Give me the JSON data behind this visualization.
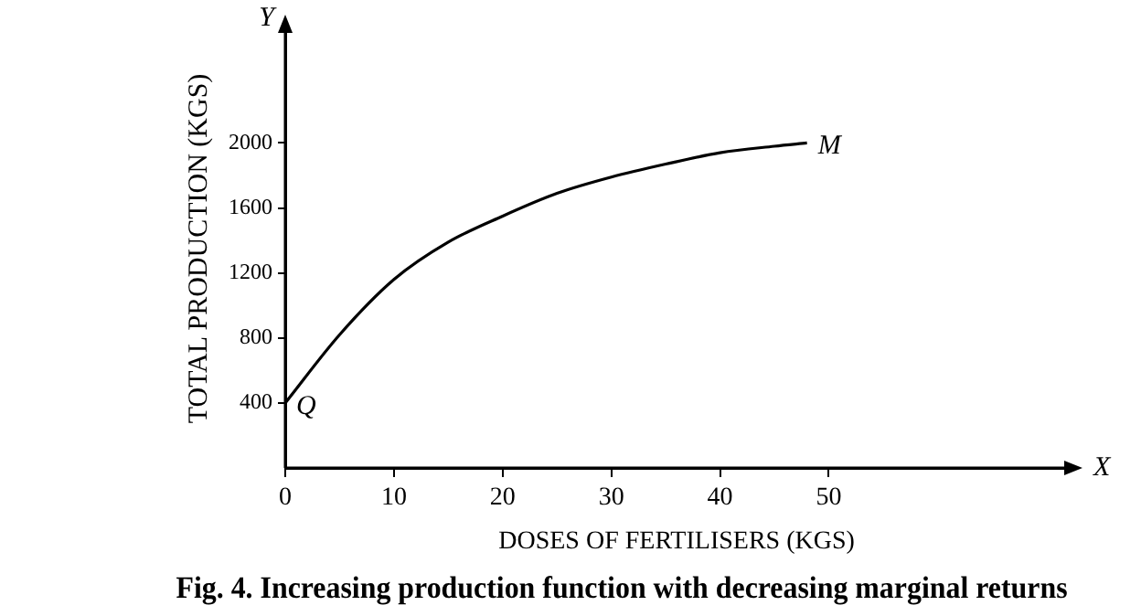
{
  "chart_data": {
    "type": "line",
    "title": "Fig. 4. Increasing production function with decreasing marginal returns",
    "xlabel": "DOSES OF FERTILISERS (KGS)",
    "ylabel": "TOTAL PRODUCTION (KGS)",
    "x": [
      0,
      5,
      10,
      15,
      20,
      25,
      30,
      35,
      40,
      45,
      48
    ],
    "series": [
      {
        "color": "#000000",
        "values": [
          400,
          820,
          1160,
          1390,
          1550,
          1690,
          1790,
          1870,
          1940,
          1980,
          2000
        ]
      }
    ],
    "xlim": [
      0,
      72
    ],
    "ylim": [
      0,
      2700
    ],
    "xticks": [
      0,
      10,
      20,
      30,
      40,
      50
    ],
    "yticks": [
      400,
      800,
      1200,
      1600,
      2000
    ],
    "grid": false,
    "legend": false,
    "marker": "none",
    "line_style": "solid",
    "annotations": [
      {
        "text": "Q",
        "x": 0,
        "y": 400
      },
      {
        "text": "M",
        "x": 48,
        "y": 2000
      },
      "X",
      "Y"
    ]
  }
}
